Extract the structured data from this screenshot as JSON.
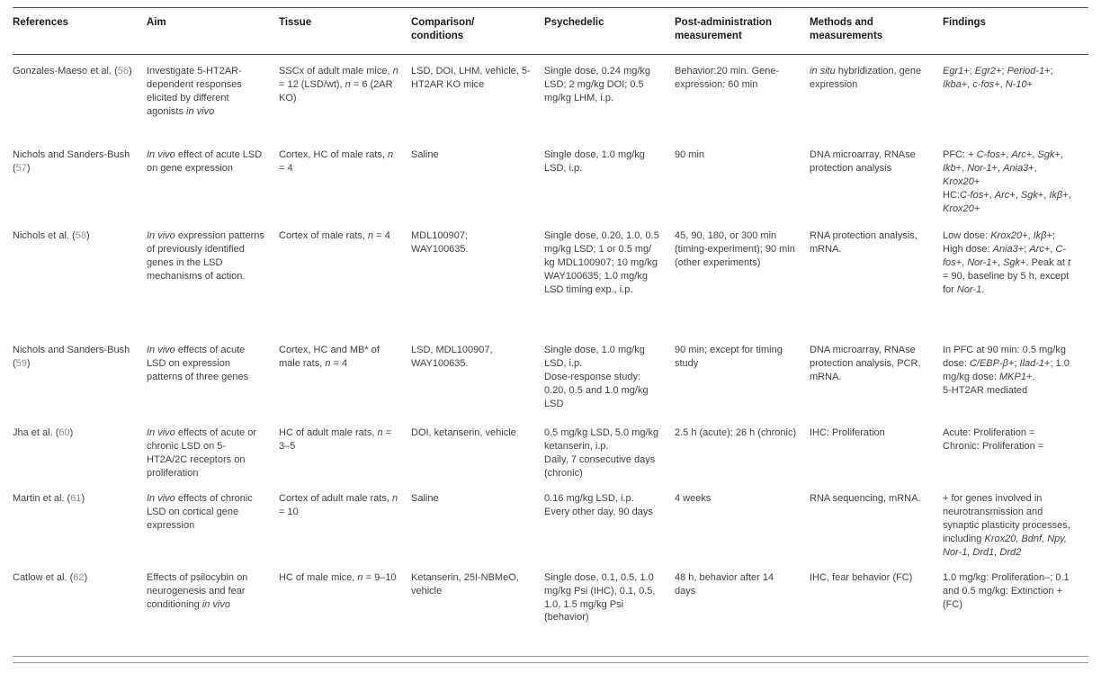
{
  "colors": {
    "rule_dark": "#4d4d4d",
    "rule_light": "#9a9a9a",
    "text": "#414141",
    "header_text": "#1a1a1a",
    "citation": "#8f8f8f",
    "page_bg": "#ffffff"
  },
  "table": {
    "columns": [
      "References",
      "Aim",
      "Tissue",
      "Comparison/\nconditions",
      "Psychedelic",
      "Post-administration\nmeasurement",
      "Methods and\nmeasurements",
      "Findings"
    ],
    "column_keys": [
      "references",
      "aim",
      "tissue",
      "comparison_conditions",
      "psychedelic",
      "post_administration_measurement",
      "methods_and_measurements",
      "findings"
    ],
    "rows": [
      {
        "references": "Gonzales-Maeso et al. (~56~)",
        "aim": "Investigate 5-HT2AR-dependent responses elicited by different agonists _in vivo_",
        "tissue": "SSCx of adult male mice, _n_ = 12 (LSD/wt), _n_ = 6 (2AR KO)",
        "comparison_conditions": "LSD, DOI, LHM, vehicle, 5-HT2AR KO mice",
        "psychedelic": "Single dose, 0.24 mg/kg LSD; 2 mg/kg DOI; 0.5 mg/kg LHM, i.p.",
        "post_administration_measurement": "Behavior:20 min. Gene-expression: 60 min",
        "methods_and_measurements": "_in situ_ hybridization, gene expression",
        "findings": "_Egr1_+; _Egr2_+; _Period-1_+; _Ikba_+, _c-fos_+, _N-10_+"
      },
      {
        "references": "Nichols and Sanders-Bush (~57~)",
        "aim": "_In vivo_ effect of acute LSD on gene expression",
        "tissue": "Cortex, HC of male rats, _n_ = 4",
        "comparison_conditions": "Saline",
        "psychedelic": "Single dose, 1.0 mg/kg LSD, i.p.",
        "post_administration_measurement": "90 min",
        "methods_and_measurements": "DNA microarray, RNAse protection analysis",
        "findings": "PFC: + _C-fos_+, _Arc_+, _Sgk_+, _Ikb_+, _Nor-1_+, _Ania3_+, _Krox20_+\nHC:_C-fos_+, _Arc_+, _Sgk_+, _Ikβ_+, _Krox20_+"
      },
      {
        "references": "Nichols et al. (~58~)",
        "aim": "_In vivo_ expression patterns of previously identified genes in the LSD mechanisms of action.",
        "tissue": "Cortex of male rats, _n_ = 4",
        "comparison_conditions": "MDL100907;\nWAY100635.",
        "psychedelic": "Single dose, 0.20, 1.0, 0.5 mg/kg LSD; 1 or 0.5 mg/ kg MDL100907; 10 mg/kg WAY100635; 1.0 mg/kg LSD timing exp., i.p.",
        "post_administration_measurement": "45, 90, 180, or 300 min (timing-experiment); 90 min (other experiments)",
        "methods_and_measurements": "RNA protection analysis, mRNA.",
        "findings": "Low dose: _Krox20_+, _Ikβ_+; High dose: _Ania3_+; _Arc_+, _C-fos_+, _Nor-1_+, _Sgk_+. Peak at _t_ = 90, baseline by 5 h, except for _Nor-1_."
      },
      {
        "references": "Nichols and Sanders-Bush (~59~)",
        "aim": "_In vivo_ effects of acute LSD on expression patterns of three genes",
        "tissue": "Cortex, HC and MB* of male rats, _n_ = 4",
        "comparison_conditions": "LSD, MDL100907, WAY100635.",
        "psychedelic": "Single dose, 1.0 mg/kg LSD, i.p.\nDose-response study: 0.20, 0.5 and 1.0 mg/kg LSD",
        "post_administration_measurement": "90 min; except for timing study",
        "methods_and_measurements": "DNA microarray, RNAse protection analysis, PCR, mRNA.",
        "findings": "In PFC at 90 min: 0.5 mg/kg dose: _C/EBP-β_+; _Ilad-1_+; 1.0 mg/kg dose: _MKP1_+.\n5-HT2AR mediated"
      },
      {
        "references": "Jha et al. (~60~)",
        "aim": "_In vivo_ effects of acute or chronic LSD on 5-HT2A/2C receptors on proliferation",
        "tissue": "HC of adult male rats, _n_ = 3–5",
        "comparison_conditions": "DOI, ketanserin, vehicle",
        "psychedelic": "0.5 mg/kg LSD, 5.0 mg/kg ketanserin, i.p.\nDaily, 7 consecutive days (chronic)",
        "post_administration_measurement": "2.5 h (acute); 26 h (chronic)",
        "methods_and_measurements": "IHC: Proliferation",
        "findings": "Acute: Proliferation =\nChronic: Proliferation ="
      },
      {
        "references": "Martin et al. (~61~)",
        "aim": "_In vivo_ effects of chronic LSD on cortical gene expression",
        "tissue": "Cortex of adult male rats, _n_ = 10",
        "comparison_conditions": "Saline",
        "psychedelic": "0.16 mg/kg LSD, i.p.\nEvery other day, 90 days",
        "post_administration_measurement": "4 weeks",
        "methods_and_measurements": "RNA sequencing, mRNA.",
        "findings": "+ for genes involved in neurotransmission and synaptic plasticity processes, including _Krox20, Bdnf, Npy, Nor-1, Drd1, Drd2_"
      },
      {
        "references": "Catlow et al. (~62~)",
        "aim": "Effects of psilocybin on neurogenesis and fear conditioning _in vivo_",
        "tissue": "HC of male mice, _n_ = 9–10",
        "comparison_conditions": "Ketanserin, 25I-NBMeO, vehicle",
        "psychedelic": "Single dose, 0.1, 0.5, 1.0 mg/kg Psi (IHC), 0.1, 0.5, 1.0, 1.5 mg/kg Psi (behavior)",
        "post_administration_measurement": "48 h, behavior after 14 days",
        "methods_and_measurements": "IHC, fear behavior (FC)",
        "findings": "1.0 mg/kg: Proliferation–; 0.1 and 0.5 mg/kg: Extinction + (FC)"
      }
    ]
  }
}
